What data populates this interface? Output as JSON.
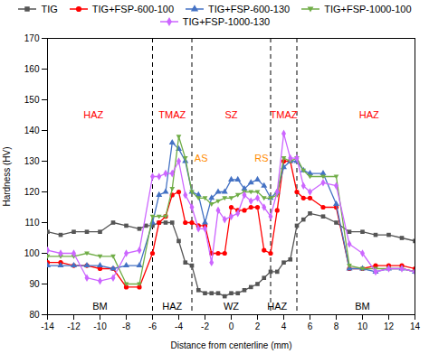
{
  "chart_data": {
    "type": "line",
    "xlabel": "Distance from centerline (mm)",
    "ylabel": "Hardness (HV)",
    "xlim": [
      -14,
      14
    ],
    "ylim": [
      80,
      170
    ],
    "xticks": [
      -14,
      -12,
      -10,
      -8,
      -6,
      -4,
      -2,
      0,
      2,
      4,
      6,
      8,
      10,
      12,
      14
    ],
    "yticks": [
      80,
      90,
      100,
      110,
      120,
      130,
      140,
      150,
      160,
      170
    ],
    "grid": false,
    "legend": "top",
    "vlines": [
      -6,
      -3,
      3,
      5
    ],
    "annotations": [
      {
        "text": "HAZ",
        "x": -10.5,
        "y": 144,
        "color": "#ff0000"
      },
      {
        "text": "TMAZ",
        "x": -4.5,
        "y": 144,
        "color": "#ff0000"
      },
      {
        "text": "SZ",
        "x": 0.0,
        "y": 144,
        "color": "#ff0000"
      },
      {
        "text": "TMAZ",
        "x": 4.0,
        "y": 144,
        "color": "#ff0000"
      },
      {
        "text": "HAZ",
        "x": 10.5,
        "y": 144,
        "color": "#ff0000"
      },
      {
        "text": "BM",
        "x": -10.0,
        "y": 81.5,
        "color": "#000000"
      },
      {
        "text": "HAZ",
        "x": -4.5,
        "y": 81.5,
        "color": "#000000"
      },
      {
        "text": "WZ",
        "x": 0.0,
        "y": 81.5,
        "color": "#000000"
      },
      {
        "text": "HAZ",
        "x": 3.5,
        "y": 81.5,
        "color": "#000000"
      },
      {
        "text": "BM",
        "x": 10.0,
        "y": 81.5,
        "color": "#000000"
      },
      {
        "text": "AS",
        "x": -2.3,
        "y": 130,
        "color": "#ff8c00"
      },
      {
        "text": "RS",
        "x": 2.3,
        "y": 130,
        "color": "#ff8c00"
      }
    ],
    "series": [
      {
        "name": "TIG",
        "color": "#555555",
        "marker": "square",
        "x": [
          -14,
          -13,
          -12,
          -11,
          -10,
          -9,
          -8,
          -7,
          -6.5,
          -6,
          -5.5,
          -5,
          -4.5,
          -4,
          -3.5,
          -3,
          -2.5,
          -2,
          -1.5,
          -1,
          -0.5,
          0,
          0.5,
          1,
          1.5,
          2,
          2.5,
          3,
          3.5,
          4,
          4.5,
          5,
          5.5,
          6,
          7,
          8,
          9,
          10,
          11,
          12,
          13,
          14
        ],
        "values": [
          107,
          106,
          107,
          107,
          107,
          110,
          109,
          108,
          109,
          109,
          110,
          110,
          110,
          104,
          97,
          96,
          88,
          87,
          87,
          87,
          86,
          87,
          87,
          88,
          89,
          90,
          92,
          94,
          94,
          97,
          98,
          109,
          111,
          113,
          112,
          110,
          107,
          107,
          106,
          106,
          105,
          104
        ]
      },
      {
        "name": "TIG+FSP-600-100",
        "color": "#ff0000",
        "marker": "circle",
        "x": [
          -14,
          -13,
          -12,
          -11,
          -10,
          -9,
          -8,
          -7,
          -6,
          -5.5,
          -5,
          -4.5,
          -4,
          -3.5,
          -3,
          -2.5,
          -2,
          -1.5,
          -1,
          -0.5,
          0,
          0.5,
          1,
          1.5,
          2,
          2.5,
          3,
          3.5,
          4,
          4.5,
          5,
          5.5,
          6,
          7,
          8,
          9,
          10,
          11,
          12,
          13,
          14
        ],
        "values": [
          97,
          97,
          96,
          96,
          95,
          95,
          89,
          89,
          100,
          110,
          112,
          119,
          120,
          110,
          110,
          109,
          109,
          100,
          100,
          100,
          115,
          114,
          114,
          115,
          115,
          101,
          100,
          114,
          130,
          130,
          120,
          118,
          118,
          115,
          115,
          95,
          95,
          96,
          96,
          96,
          95
        ]
      },
      {
        "name": "TIG+FSP-600-130",
        "color": "#4472c4",
        "marker": "triangle-up",
        "x": [
          -14,
          -13,
          -12,
          -11,
          -10,
          -9,
          -8,
          -7,
          -6,
          -5.5,
          -5,
          -4.5,
          -4,
          -3.5,
          -3,
          -2.5,
          -2,
          -1.5,
          -1,
          -0.5,
          0,
          0.5,
          1,
          1.5,
          2,
          2.5,
          3,
          3.5,
          4,
          4.5,
          5,
          5.5,
          6,
          7,
          8,
          9,
          10,
          11,
          12,
          13,
          14
        ],
        "values": [
          96,
          96,
          96,
          96,
          96,
          95,
          96,
          96,
          110,
          119,
          120,
          136,
          134,
          130,
          120,
          119,
          110,
          118,
          120,
          120,
          124,
          124,
          121,
          123,
          124,
          122,
          118,
          120,
          128,
          130,
          130,
          127,
          126,
          126,
          116,
          95,
          95,
          94,
          95,
          95,
          94
        ]
      },
      {
        "name": "TIG+FSP-1000-100",
        "color": "#70ad47",
        "marker": "triangle-down",
        "x": [
          -14,
          -13,
          -12,
          -11,
          -10,
          -9,
          -8,
          -7,
          -6,
          -5.5,
          -5,
          -4.5,
          -4,
          -3.5,
          -3,
          -2.5,
          -2,
          -1.5,
          -1,
          -0.5,
          0,
          0.5,
          1,
          1.5,
          2,
          2.5,
          3,
          3.5,
          4,
          4.5,
          5,
          5.5,
          6,
          7,
          8,
          9,
          10,
          11,
          12,
          13,
          14
        ],
        "values": [
          99,
          99,
          99,
          100,
          99,
          99,
          90,
          90,
          112,
          112,
          112,
          121,
          138,
          131,
          120,
          118,
          118,
          116,
          117,
          118,
          118,
          119,
          120,
          120,
          120,
          118,
          118,
          119,
          131,
          130,
          131,
          127,
          125,
          125,
          125,
          96,
          95,
          95,
          95,
          95,
          94
        ]
      },
      {
        "name": "TIG+FSP-1000-130",
        "color": "#cc66ff",
        "marker": "diamond",
        "x": [
          -14,
          -13,
          -12,
          -11,
          -10,
          -9,
          -8,
          -7,
          -6,
          -5.5,
          -5,
          -4.5,
          -4,
          -3.5,
          -3,
          -2.5,
          -2,
          -1.5,
          -1,
          -0.5,
          0,
          0.5,
          1,
          1.5,
          2,
          2.5,
          3,
          3.5,
          4,
          4.5,
          5,
          5.5,
          6,
          7,
          8,
          9,
          10,
          11,
          12,
          13,
          14
        ],
        "values": [
          101,
          100,
          100,
          92,
          91,
          92,
          100,
          101,
          125,
          125,
          126,
          126,
          130,
          119,
          115,
          108,
          108,
          97,
          114,
          111,
          112,
          113,
          119,
          117,
          118,
          115,
          112,
          120,
          139,
          131,
          131,
          122,
          120,
          123,
          122,
          103,
          100,
          94,
          95,
          95,
          94
        ]
      }
    ]
  }
}
